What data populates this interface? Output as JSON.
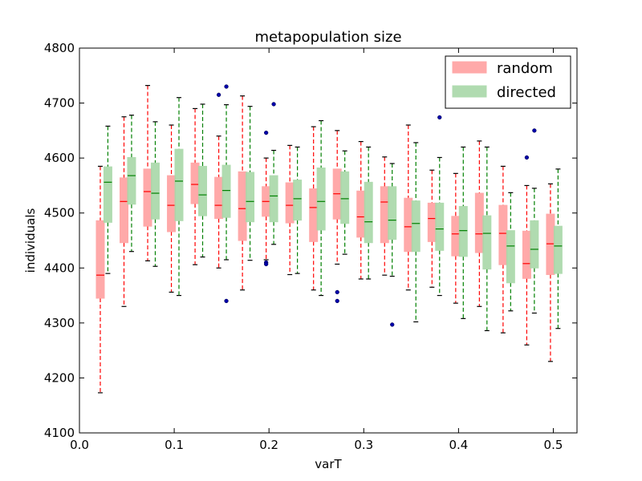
{
  "chart_data": {
    "type": "box",
    "title": "metapopulation size",
    "xlabel": "varT",
    "ylabel": "individuals",
    "xlim": [
      0.0,
      0.525
    ],
    "ylim": [
      4100,
      4800
    ],
    "xticks": [
      "0.0",
      "0.1",
      "0.2",
      "0.3",
      "0.4",
      "0.5"
    ],
    "yticks": [
      "4100",
      "4200",
      "4300",
      "4400",
      "4500",
      "4600",
      "4700",
      "4800"
    ],
    "legend": {
      "position": "top-right"
    },
    "series": [
      {
        "name": "random",
        "box_color": "#ffa0a0",
        "line_color": "#ff0000",
        "boxes": [
          {
            "x": 0.022,
            "wlo": 4173,
            "q1": 4345,
            "med": 4387,
            "q3": 4486,
            "whi": 4585,
            "outliers": []
          },
          {
            "x": 0.047,
            "wlo": 4330,
            "q1": 4446,
            "med": 4521,
            "q3": 4564,
            "whi": 4675,
            "outliers": []
          },
          {
            "x": 0.072,
            "wlo": 4413,
            "q1": 4476,
            "med": 4539,
            "q3": 4580,
            "whi": 4732,
            "outliers": []
          },
          {
            "x": 0.097,
            "wlo": 4356,
            "q1": 4466,
            "med": 4514,
            "q3": 4568,
            "whi": 4660,
            "outliers": []
          },
          {
            "x": 0.122,
            "wlo": 4406,
            "q1": 4517,
            "med": 4552,
            "q3": 4591,
            "whi": 4690,
            "outliers": []
          },
          {
            "x": 0.147,
            "wlo": 4400,
            "q1": 4490,
            "med": 4514,
            "q3": 4565,
            "whi": 4640,
            "outliers": [
              4715
            ]
          },
          {
            "x": 0.172,
            "wlo": 4360,
            "q1": 4450,
            "med": 4508,
            "q3": 4575,
            "whi": 4713,
            "outliers": []
          },
          {
            "x": 0.197,
            "wlo": 4415,
            "q1": 4494,
            "med": 4521,
            "q3": 4548,
            "whi": 4600,
            "outliers": [
              4646,
              4410,
              4407
            ]
          },
          {
            "x": 0.222,
            "wlo": 4388,
            "q1": 4482,
            "med": 4514,
            "q3": 4555,
            "whi": 4623,
            "outliers": []
          },
          {
            "x": 0.247,
            "wlo": 4360,
            "q1": 4448,
            "med": 4510,
            "q3": 4544,
            "whi": 4657,
            "outliers": []
          },
          {
            "x": 0.272,
            "wlo": 4407,
            "q1": 4489,
            "med": 4535,
            "q3": 4580,
            "whi": 4650,
            "outliers": [
              4356,
              4340
            ]
          },
          {
            "x": 0.297,
            "wlo": 4380,
            "q1": 4456,
            "med": 4493,
            "q3": 4540,
            "whi": 4630,
            "outliers": []
          },
          {
            "x": 0.322,
            "wlo": 4387,
            "q1": 4446,
            "med": 4520,
            "q3": 4548,
            "whi": 4602,
            "outliers": []
          },
          {
            "x": 0.347,
            "wlo": 4360,
            "q1": 4430,
            "med": 4475,
            "q3": 4527,
            "whi": 4660,
            "outliers": []
          },
          {
            "x": 0.372,
            "wlo": 4365,
            "q1": 4448,
            "med": 4490,
            "q3": 4518,
            "whi": 4578,
            "outliers": []
          },
          {
            "x": 0.397,
            "wlo": 4336,
            "q1": 4422,
            "med": 4462,
            "q3": 4494,
            "whi": 4572,
            "outliers": []
          },
          {
            "x": 0.422,
            "wlo": 4330,
            "q1": 4428,
            "med": 4462,
            "q3": 4536,
            "whi": 4631,
            "outliers": []
          },
          {
            "x": 0.447,
            "wlo": 4282,
            "q1": 4406,
            "med": 4463,
            "q3": 4514,
            "whi": 4585,
            "outliers": []
          },
          {
            "x": 0.472,
            "wlo": 4260,
            "q1": 4381,
            "med": 4408,
            "q3": 4467,
            "whi": 4550,
            "outliers": [
              4601
            ]
          },
          {
            "x": 0.497,
            "wlo": 4230,
            "q1": 4388,
            "med": 4444,
            "q3": 4498,
            "whi": 4553,
            "outliers": []
          }
        ]
      },
      {
        "name": "directed",
        "box_color": "#a8d8a8",
        "line_color": "#008000",
        "boxes": [
          {
            "x": 0.03,
            "wlo": 4390,
            "q1": 4483,
            "med": 4556,
            "q3": 4584,
            "whi": 4658,
            "outliers": []
          },
          {
            "x": 0.055,
            "wlo": 4430,
            "q1": 4516,
            "med": 4568,
            "q3": 4601,
            "whi": 4678,
            "outliers": []
          },
          {
            "x": 0.08,
            "wlo": 4403,
            "q1": 4489,
            "med": 4536,
            "q3": 4591,
            "whi": 4666,
            "outliers": []
          },
          {
            "x": 0.105,
            "wlo": 4350,
            "q1": 4486,
            "med": 4558,
            "q3": 4616,
            "whi": 4710,
            "outliers": []
          },
          {
            "x": 0.13,
            "wlo": 4420,
            "q1": 4495,
            "med": 4533,
            "q3": 4585,
            "whi": 4698,
            "outliers": []
          },
          {
            "x": 0.155,
            "wlo": 4415,
            "q1": 4492,
            "med": 4541,
            "q3": 4587,
            "whi": 4697,
            "outliers": [
              4730,
              4340
            ]
          },
          {
            "x": 0.18,
            "wlo": 4414,
            "q1": 4484,
            "med": 4521,
            "q3": 4574,
            "whi": 4694,
            "outliers": []
          },
          {
            "x": 0.205,
            "wlo": 4443,
            "q1": 4484,
            "med": 4531,
            "q3": 4568,
            "whi": 4614,
            "outliers": [
              4698
            ]
          },
          {
            "x": 0.23,
            "wlo": 4390,
            "q1": 4487,
            "med": 4526,
            "q3": 4560,
            "whi": 4620,
            "outliers": []
          },
          {
            "x": 0.255,
            "wlo": 4350,
            "q1": 4469,
            "med": 4521,
            "q3": 4582,
            "whi": 4668,
            "outliers": []
          },
          {
            "x": 0.28,
            "wlo": 4425,
            "q1": 4481,
            "med": 4526,
            "q3": 4575,
            "whi": 4613,
            "outliers": []
          },
          {
            "x": 0.305,
            "wlo": 4380,
            "q1": 4446,
            "med": 4484,
            "q3": 4556,
            "whi": 4620,
            "outliers": []
          },
          {
            "x": 0.33,
            "wlo": 4385,
            "q1": 4452,
            "med": 4487,
            "q3": 4548,
            "whi": 4590,
            "outliers": [
              4297
            ]
          },
          {
            "x": 0.355,
            "wlo": 4302,
            "q1": 4430,
            "med": 4481,
            "q3": 4522,
            "whi": 4628,
            "outliers": []
          },
          {
            "x": 0.38,
            "wlo": 4350,
            "q1": 4432,
            "med": 4471,
            "q3": 4518,
            "whi": 4601,
            "outliers": [
              4674
            ]
          },
          {
            "x": 0.405,
            "wlo": 4308,
            "q1": 4421,
            "med": 4468,
            "q3": 4512,
            "whi": 4620,
            "outliers": []
          },
          {
            "x": 0.43,
            "wlo": 4286,
            "q1": 4398,
            "med": 4463,
            "q3": 4495,
            "whi": 4620,
            "outliers": []
          },
          {
            "x": 0.455,
            "wlo": 4322,
            "q1": 4373,
            "med": 4440,
            "q3": 4468,
            "whi": 4537,
            "outliers": []
          },
          {
            "x": 0.48,
            "wlo": 4318,
            "q1": 4400,
            "med": 4434,
            "q3": 4486,
            "whi": 4545,
            "outliers": [
              4650
            ]
          },
          {
            "x": 0.505,
            "wlo": 4290,
            "q1": 4390,
            "med": 4440,
            "q3": 4476,
            "whi": 4580,
            "outliers": []
          }
        ]
      }
    ]
  }
}
